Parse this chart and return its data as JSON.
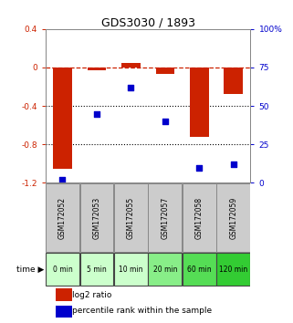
{
  "title": "GDS3030 / 1893",
  "samples": [
    "GSM172052",
    "GSM172053",
    "GSM172055",
    "GSM172057",
    "GSM172058",
    "GSM172059"
  ],
  "time_labels": [
    "0 min",
    "5 min",
    "10 min",
    "20 min",
    "60 min",
    "120 min"
  ],
  "log2_ratio": [
    -1.05,
    -0.03,
    0.05,
    -0.07,
    -0.72,
    -0.28
  ],
  "percentile_rank": [
    2,
    45,
    62,
    40,
    10,
    12
  ],
  "bar_color": "#cc2200",
  "dot_color": "#0000cc",
  "left_ylim": [
    -1.2,
    0.4
  ],
  "right_ylim": [
    0,
    100
  ],
  "left_yticks": [
    0.4,
    0.0,
    -0.4,
    -0.8,
    -1.2
  ],
  "right_yticks": [
    100,
    75,
    50,
    25,
    0
  ],
  "hline_y": 0,
  "dotted_yticks": [
    -0.4,
    -0.8
  ],
  "time_colors": [
    "#ccffcc",
    "#ccffcc",
    "#ccffcc",
    "#88ee88",
    "#55dd55",
    "#33cc33"
  ],
  "legend_log2": "log2 ratio",
  "legend_pct": "percentile rank within the sample",
  "bg_color": "#ffffff",
  "sample_box_color": "#cccccc"
}
